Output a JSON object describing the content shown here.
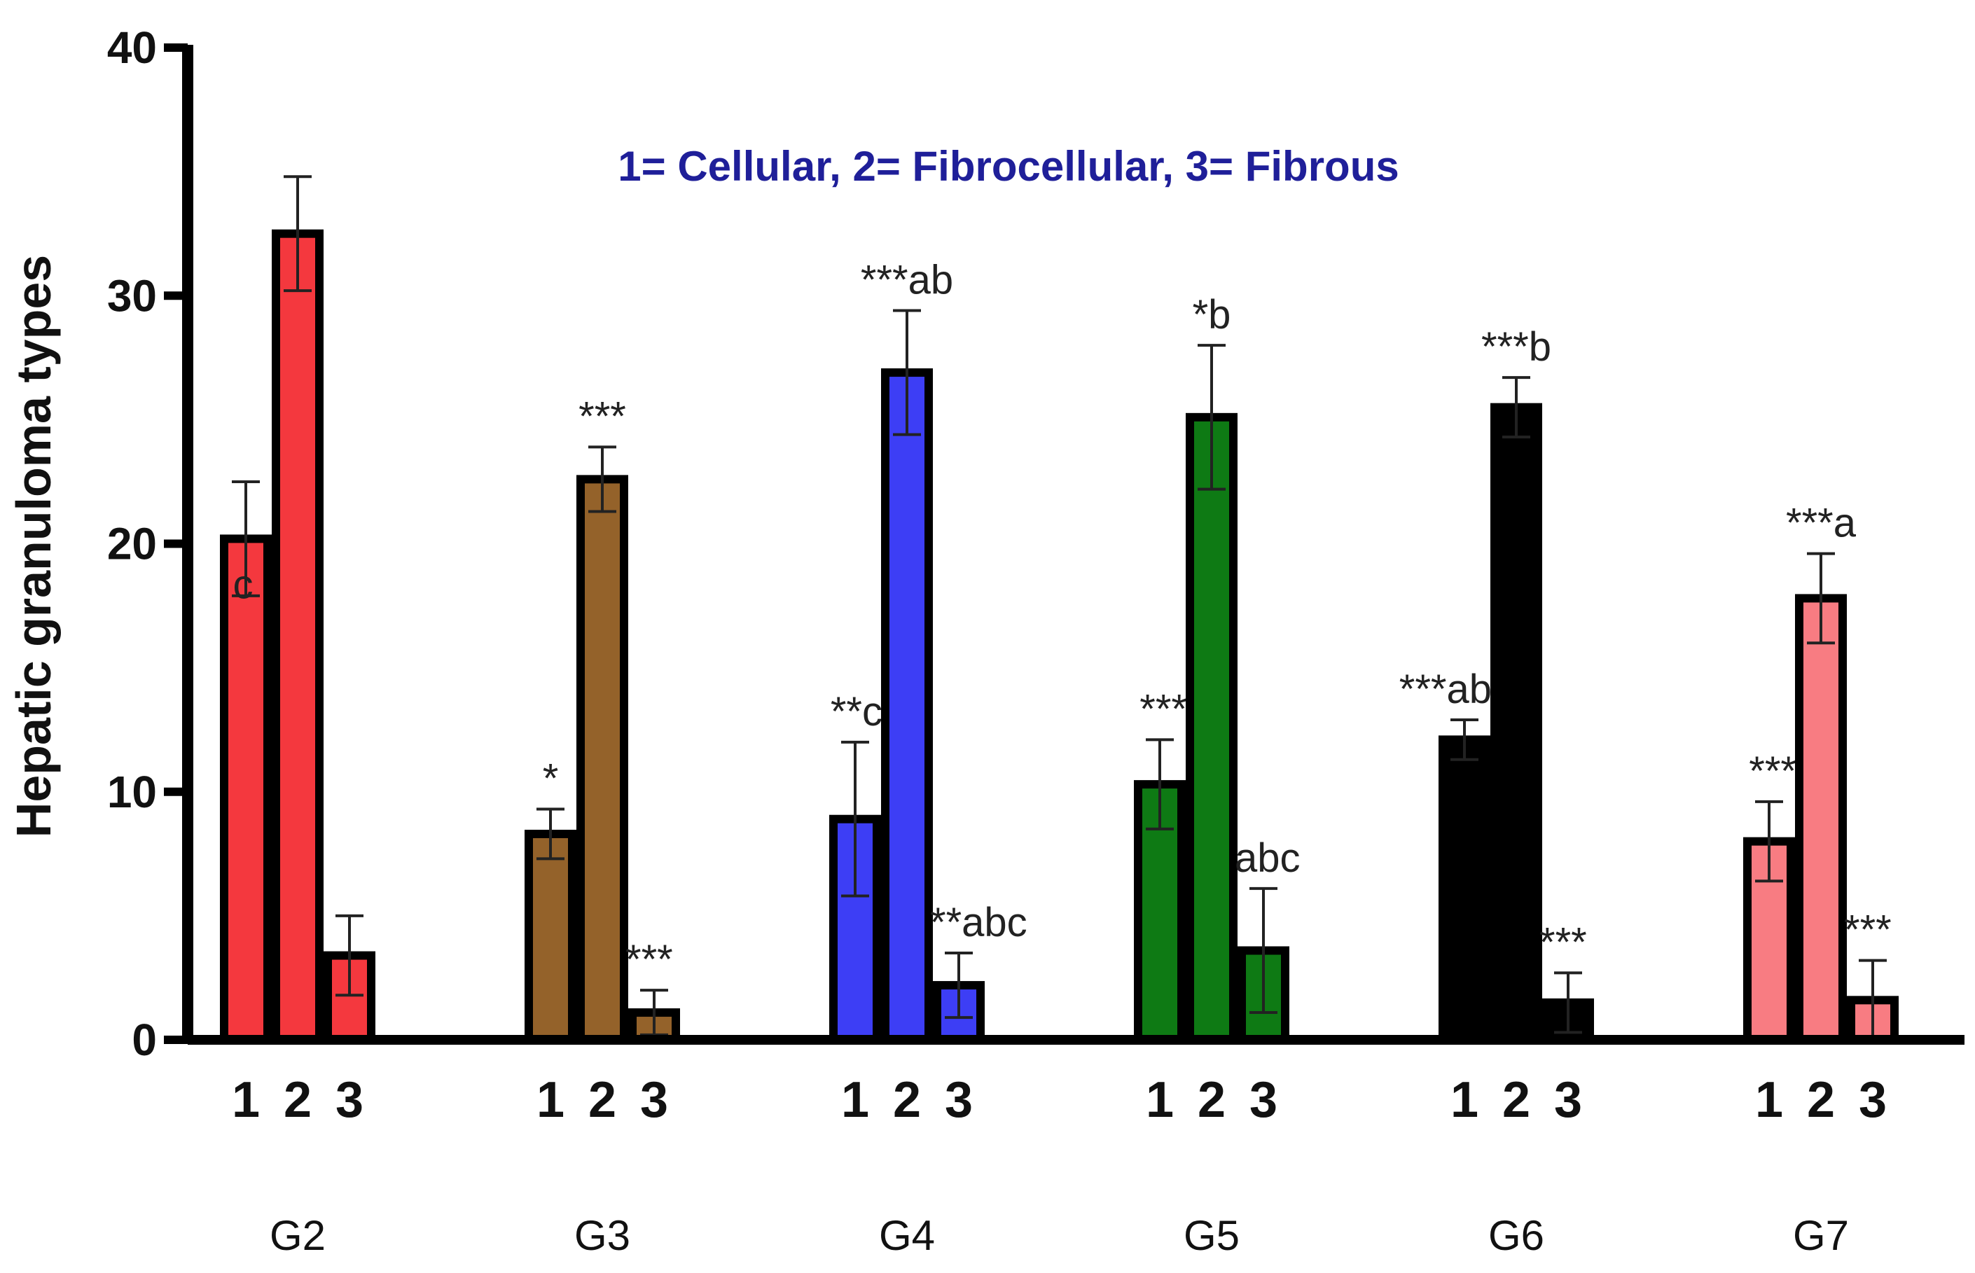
{
  "chart_data": {
    "type": "bar",
    "ylabel": "Hepatic granuloma types",
    "xlabel": "",
    "ylim": [
      0,
      40
    ],
    "yticks": [
      0,
      10,
      20,
      30,
      40
    ],
    "grid": false,
    "legend_note": "1= Cellular, 2= Fibrocellular, 3= Fibrous",
    "legend_note_color": "#1f1f99",
    "groups": [
      {
        "name": "G2",
        "color": "#f4383e",
        "bars": [
          {
            "label": "1",
            "value": 20.2,
            "error": 2.3,
            "annotation": "c"
          },
          {
            "label": "2",
            "value": 32.5,
            "error": 2.3,
            "annotation": ""
          },
          {
            "label": "3",
            "value": 3.4,
            "error": 1.6,
            "annotation": ""
          }
        ]
      },
      {
        "name": "G3",
        "color": "#94622a",
        "bars": [
          {
            "label": "1",
            "value": 8.3,
            "error": 1.0,
            "annotation": "*"
          },
          {
            "label": "2",
            "value": 22.6,
            "error": 1.3,
            "annotation": "***"
          },
          {
            "label": "3",
            "value": 1.1,
            "error": 0.9,
            "annotation": "***"
          }
        ]
      },
      {
        "name": "G4",
        "color": "#3d3ef5",
        "bars": [
          {
            "label": "1",
            "value": 8.9,
            "error": 3.1,
            "annotation": "**c"
          },
          {
            "label": "2",
            "value": 26.9,
            "error": 2.5,
            "annotation": "***ab"
          },
          {
            "label": "3",
            "value": 2.2,
            "error": 1.3,
            "annotation": "**abc"
          }
        ]
      },
      {
        "name": "G5",
        "color": "#0e7a14",
        "bars": [
          {
            "label": "1",
            "value": 10.3,
            "error": 1.8,
            "annotation": "***"
          },
          {
            "label": "2",
            "value": 25.1,
            "error": 2.9,
            "annotation": "*b"
          },
          {
            "label": "3",
            "value": 3.6,
            "error": 2.5,
            "annotation": "abc"
          }
        ]
      },
      {
        "name": "G6",
        "color": "#000000",
        "bars": [
          {
            "label": "1",
            "value": 12.1,
            "error": 0.8,
            "annotation": "***ab"
          },
          {
            "label": "2",
            "value": 25.5,
            "error": 1.2,
            "annotation": "***b"
          },
          {
            "label": "3",
            "value": 1.5,
            "error": 1.2,
            "annotation": "***"
          }
        ]
      },
      {
        "name": "G7",
        "color": "#f87c82",
        "bars": [
          {
            "label": "1",
            "value": 8.0,
            "error": 1.6,
            "annotation": "***"
          },
          {
            "label": "2",
            "value": 17.8,
            "error": 1.8,
            "annotation": "***a"
          },
          {
            "label": "3",
            "value": 1.6,
            "error": 1.6,
            "annotation": "***"
          }
        ]
      }
    ]
  }
}
